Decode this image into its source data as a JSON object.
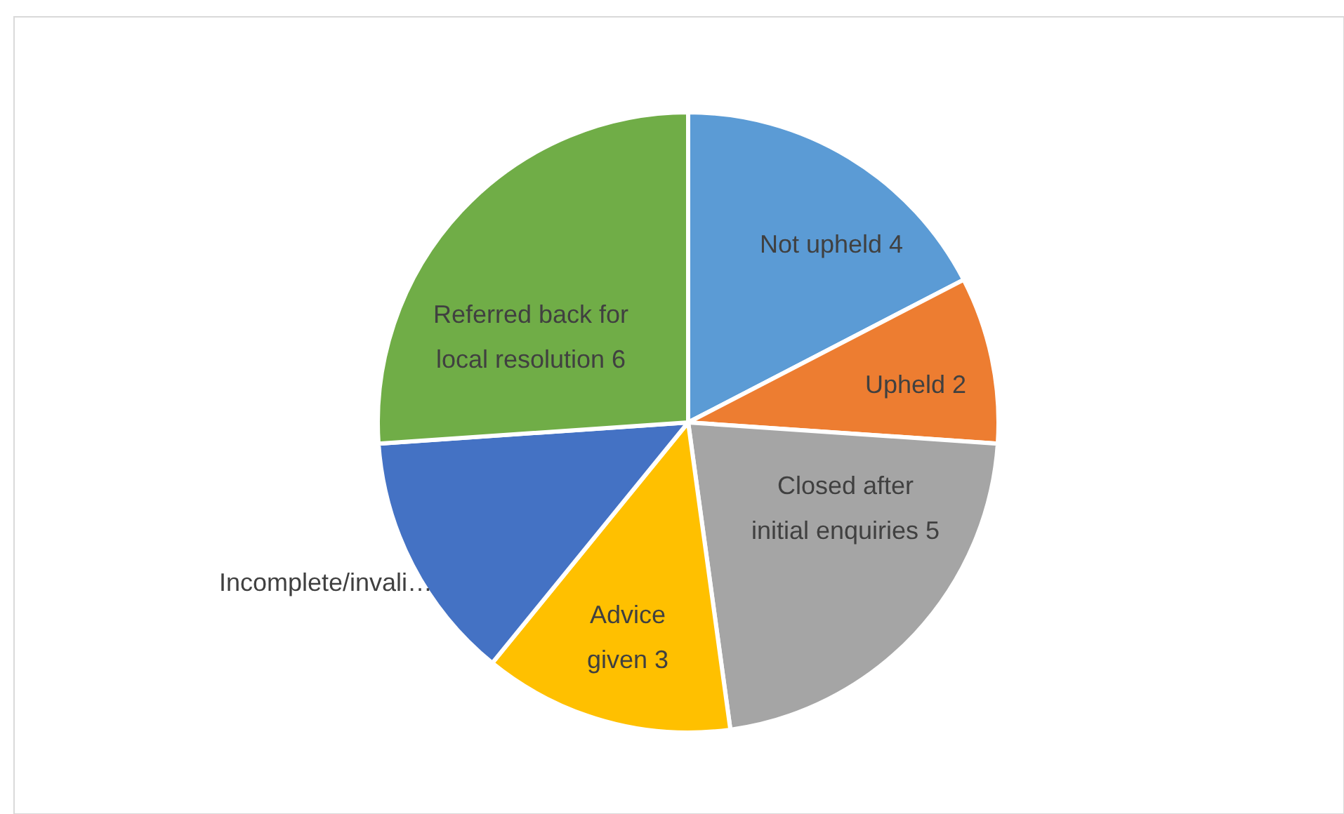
{
  "chart_data": {
    "type": "pie",
    "categories": [
      "Not upheld",
      "Upheld",
      "Closed after initial enquiries",
      "Advice given",
      "Incomplete/invali…",
      "Referred back for local resolution"
    ],
    "values": [
      4,
      2,
      5,
      3,
      3,
      6
    ],
    "value_labels": [
      "4",
      "2",
      "5",
      "3",
      null,
      "6"
    ],
    "colors": [
      "#5b9bd5",
      "#ed7d31",
      "#a5a5a5",
      "#ffc000",
      "#4472c4",
      "#70ad47"
    ],
    "legend": false
  }
}
